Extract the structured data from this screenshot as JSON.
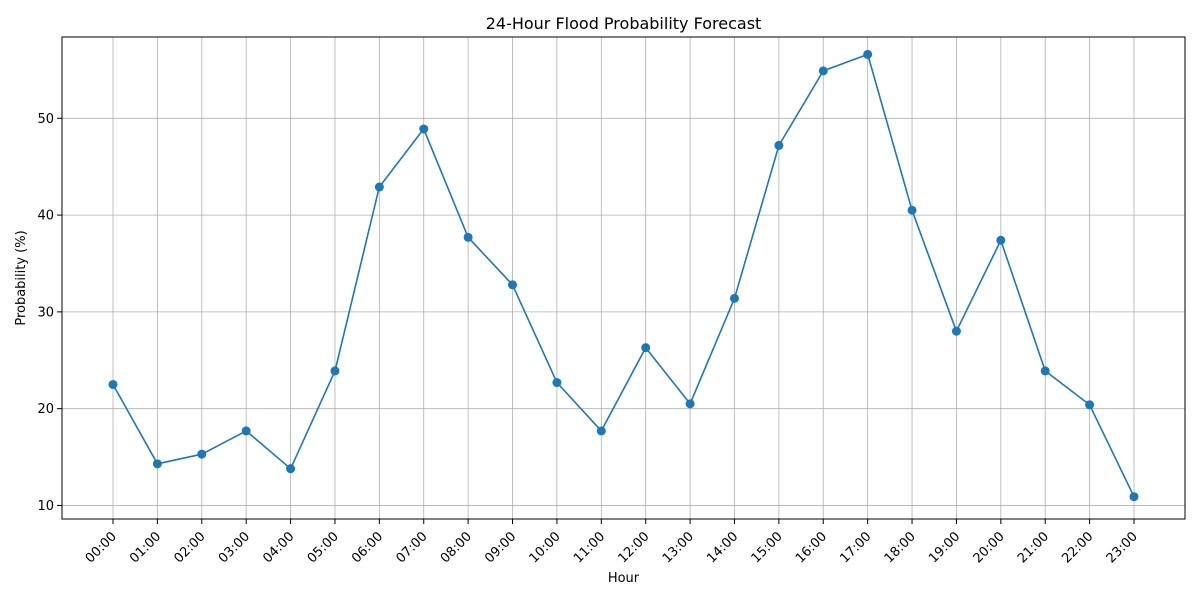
{
  "chart_data": {
    "type": "line",
    "title": "24-Hour Flood Probability Forecast",
    "xlabel": "Hour",
    "ylabel": "Probability (%)",
    "categories": [
      "00:00",
      "01:00",
      "02:00",
      "03:00",
      "04:00",
      "05:00",
      "06:00",
      "07:00",
      "08:00",
      "09:00",
      "10:00",
      "11:00",
      "12:00",
      "13:00",
      "14:00",
      "15:00",
      "16:00",
      "17:00",
      "18:00",
      "19:00",
      "20:00",
      "21:00",
      "22:00",
      "23:00"
    ],
    "series": [
      {
        "values": [
          22.5,
          14.3,
          15.3,
          17.7,
          13.8,
          23.9,
          42.9,
          48.9,
          37.7,
          32.8,
          22.7,
          17.7,
          26.3,
          20.5,
          31.4,
          47.2,
          54.9,
          56.6,
          40.5,
          28.0,
          37.4,
          23.9,
          20.4,
          10.9
        ],
        "color": "#1f77b4",
        "marker": "circle"
      }
    ],
    "yticks": [
      10,
      20,
      30,
      40,
      50
    ],
    "ylim": [
      8.6,
      58.4
    ],
    "grid": true,
    "x_tick_rotation": 45,
    "legend": "none"
  },
  "colors": {
    "line": "#1f77b4",
    "grid": "#b0b0b0",
    "axes": "#000000",
    "background": "#ffffff"
  }
}
